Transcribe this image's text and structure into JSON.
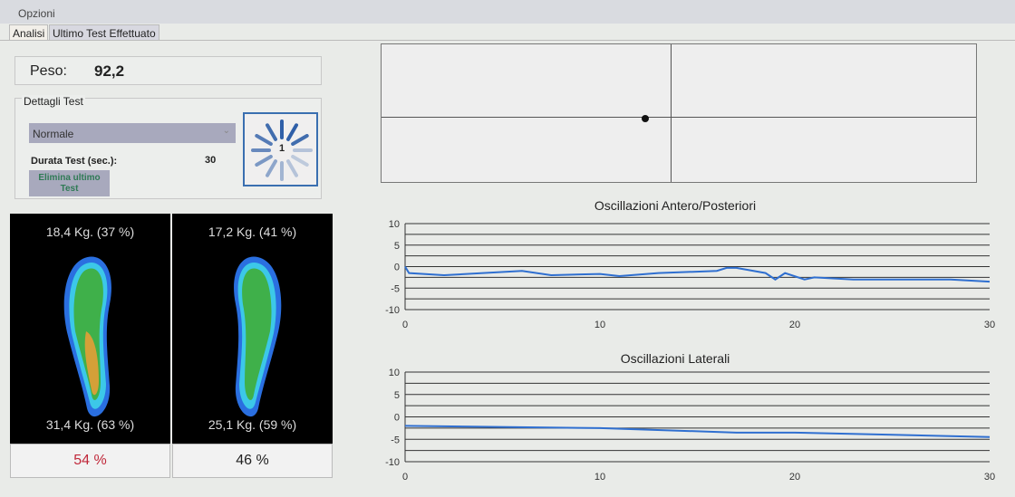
{
  "menu": {
    "opzioni": "Opzioni"
  },
  "tabs": [
    {
      "label": "Analisi",
      "active": true
    },
    {
      "label": "Ultimo Test Effettuato",
      "active": false
    }
  ],
  "peso": {
    "label": "Peso:",
    "value": "92,2"
  },
  "dettagli": {
    "title": "Dettagli Test",
    "mode": "Normale",
    "durata_label": "Durata Test (sec.):",
    "durata_value": "30",
    "elimina_label": "Elimina ultimo Test",
    "spinner_value": "1"
  },
  "feet": [
    {
      "side": "left",
      "top_text": "18,4 Kg. (37 %)",
      "bottom_text": "31,4 Kg. (63 %)",
      "percent": "54 %",
      "percent_color": "#c0283a"
    },
    {
      "side": "right",
      "top_text": "17,2 Kg. (41 %)",
      "bottom_text": "25,1 Kg. (59 %)",
      "percent": "46 %",
      "percent_color": "#222222"
    }
  ],
  "chart_data": [
    {
      "type": "line",
      "title": "Oscillazioni Antero/Posteriori",
      "xlim": [
        0,
        30
      ],
      "ylim": [
        -10,
        10
      ],
      "xticks": [
        "0",
        "10",
        "20",
        "30"
      ],
      "yticks": [
        "10",
        "5",
        "0",
        "-5",
        "-10"
      ],
      "grid": true,
      "color": "#2f6fd0",
      "x": [
        0,
        0.2,
        2,
        4,
        6,
        7.5,
        10,
        11,
        13,
        16,
        16.5,
        17,
        18.5,
        19,
        19.5,
        20.5,
        21,
        23,
        25,
        28,
        30
      ],
      "y": [
        0,
        -1.5,
        -2,
        -1.5,
        -1,
        -2,
        -1.7,
        -2.2,
        -1.5,
        -1,
        -0.3,
        -0.3,
        -1.5,
        -3,
        -1.5,
        -3,
        -2.5,
        -3,
        -3,
        -3,
        -3.5
      ]
    },
    {
      "type": "line",
      "title": "Oscillazioni Laterali",
      "xlim": [
        0,
        30
      ],
      "ylim": [
        -10,
        10
      ],
      "xticks": [
        "0",
        "10",
        "20",
        "30"
      ],
      "yticks": [
        "10",
        "5",
        "0",
        "-5",
        "-10"
      ],
      "grid": true,
      "color": "#2f6fd0",
      "x": [
        0,
        10,
        17,
        20,
        25,
        30
      ],
      "y": [
        -2,
        -2.5,
        -3.5,
        -3.5,
        -4,
        -4.5
      ]
    }
  ]
}
